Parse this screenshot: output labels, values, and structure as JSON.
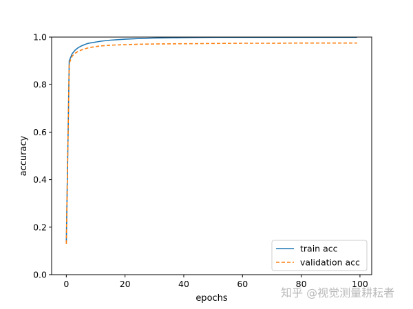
{
  "chart_data": {
    "type": "line",
    "title": "",
    "xlabel": "epochs",
    "ylabel": "accuracy",
    "xlim": [
      -5,
      104
    ],
    "ylim": [
      0,
      1.0
    ],
    "xticks": [
      0,
      20,
      40,
      60,
      80,
      100
    ],
    "xtick_labels": [
      "0",
      "20",
      "40",
      "60",
      "80",
      "100"
    ],
    "yticks": [
      0,
      0.2,
      0.4,
      0.6,
      0.8,
      1.0
    ],
    "ytick_labels": [
      "0.0",
      "0.2",
      "0.4",
      "0.6",
      "0.8",
      "1.0"
    ],
    "grid": false,
    "legend_position": "lower-right",
    "x": [
      0,
      1,
      2,
      3,
      4,
      5,
      6,
      7,
      8,
      10,
      12,
      15,
      20,
      25,
      30,
      40,
      50,
      60,
      70,
      80,
      90,
      99
    ],
    "series": [
      {
        "name": "train acc",
        "color": "#1f77b4",
        "linestyle": "solid",
        "values": [
          0.13,
          0.9,
          0.93,
          0.945,
          0.955,
          0.962,
          0.967,
          0.972,
          0.975,
          0.979,
          0.983,
          0.987,
          0.991,
          0.994,
          0.996,
          0.998,
          0.999,
          0.999,
          0.999,
          0.999,
          0.999,
          0.999
        ]
      },
      {
        "name": "validation acc",
        "color": "#ff7f0e",
        "linestyle": "dashed",
        "values": [
          0.13,
          0.89,
          0.92,
          0.932,
          0.94,
          0.945,
          0.949,
          0.953,
          0.956,
          0.96,
          0.963,
          0.966,
          0.968,
          0.97,
          0.971,
          0.972,
          0.973,
          0.974,
          0.974,
          0.975,
          0.975,
          0.975
        ]
      }
    ]
  },
  "watermark": "知乎 @视觉测量耕耘者"
}
